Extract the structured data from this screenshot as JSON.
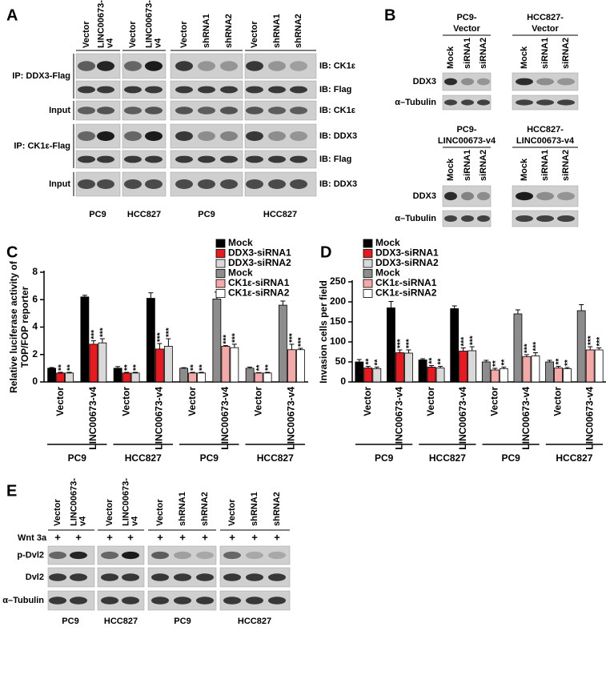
{
  "panel_labels": [
    "A",
    "B",
    "C",
    "D",
    "E"
  ],
  "panel_a": {
    "lanes": [
      [
        "Vector"
      ],
      [
        "LINC00673-",
        "v4"
      ],
      [
        "Vector"
      ],
      [
        "LINC00673-",
        "v4"
      ],
      [
        "Vector"
      ],
      [
        "shRNA1"
      ],
      [
        "shRNA2"
      ],
      [
        "Vector"
      ],
      [
        "shRNA1"
      ],
      [
        "shRNA2"
      ]
    ],
    "ip_labels": [
      "IP: DDX3-Flag",
      "Input",
      "IP: CK1ε-Flag",
      "Input"
    ],
    "ib_labels": [
      "IB: CK1ε",
      "IB: Flag",
      "IB: CK1ε",
      "IB: DDX3",
      "IB: Flag",
      "IB: DDX3"
    ],
    "groups": [
      "PC9",
      "HCC827",
      "PC9",
      "HCC827"
    ]
  },
  "panel_b": {
    "headers": [
      [
        "PC9-",
        "Vector"
      ],
      [
        "HCC827-",
        "Vector"
      ],
      [
        "PC9-",
        "LINC00673-v4"
      ],
      [
        "HCC827-",
        "LINC00673-v4"
      ]
    ],
    "lanes": [
      "Mock",
      "siRNA1",
      "siRNA2"
    ],
    "rows": [
      "DDX3",
      "α–Tubulin"
    ]
  },
  "chart_data": [
    {
      "type": "bar",
      "ylabel": [
        "Relative luciferase activity of",
        "TOP/FOP reporter"
      ],
      "categories": [
        "Vector",
        "LINC00673-v4",
        "Vector",
        "LINC00673-v4",
        "Vector",
        "LINC00673-v4",
        "Vector",
        "LINC00673-v4"
      ],
      "groups": [
        "PC9",
        "HCC827",
        "PC9",
        "HCC827"
      ],
      "ylim": [
        0,
        8
      ],
      "yticks": [
        0,
        2,
        4,
        6,
        8
      ],
      "legend": "upper right",
      "series": [
        {
          "name": "Mock",
          "color": "#000000",
          "values": [
            1.0,
            6.2,
            1.0,
            6.1,
            null,
            null,
            null,
            null
          ],
          "errors": [
            0.05,
            0.12,
            0.12,
            0.4,
            null,
            null,
            null,
            null
          ]
        },
        {
          "name": "DDX3-siRNA1",
          "color": "#e8191f",
          "values": [
            0.65,
            2.75,
            0.65,
            2.4,
            null,
            null,
            null,
            null
          ],
          "errors": [
            0.05,
            0.25,
            0.05,
            0.4,
            null,
            null,
            null,
            null
          ],
          "annotations": [
            "**",
            "***",
            "**",
            "***",
            null,
            null,
            null,
            null
          ]
        },
        {
          "name": "DDX3-siRNA2",
          "color": "#d9d9d9",
          "values": [
            0.65,
            2.85,
            0.65,
            2.6,
            null,
            null,
            null,
            null
          ],
          "errors": [
            0.05,
            0.3,
            0.05,
            0.55,
            null,
            null,
            null,
            null
          ],
          "annotations": [
            "**",
            "***",
            "**",
            "***",
            null,
            null,
            null,
            null
          ]
        },
        {
          "name": "Mock",
          "color": "#8c8c8c",
          "values": [
            null,
            null,
            null,
            null,
            1.0,
            6.05,
            1.0,
            5.6
          ],
          "errors": [
            null,
            null,
            null,
            null,
            0.04,
            0.5,
            0.08,
            0.3
          ]
        },
        {
          "name": "CK1ε-siRNA1",
          "color": "#f4a9a9",
          "values": [
            null,
            null,
            null,
            null,
            0.65,
            2.6,
            0.65,
            2.35
          ],
          "errors": [
            null,
            null,
            null,
            null,
            0.05,
            0.05,
            0.03,
            0.4
          ],
          "annotations": [
            null,
            null,
            null,
            null,
            "**",
            "***",
            "**",
            "***"
          ]
        },
        {
          "name": "CK1ε-siRNA2",
          "color": "#ffffff",
          "values": [
            null,
            null,
            null,
            null,
            0.65,
            2.5,
            0.65,
            2.35
          ],
          "errors": [
            null,
            null,
            null,
            null,
            0.05,
            0.25,
            0.05,
            0.1
          ],
          "annotations": [
            null,
            null,
            null,
            null,
            "**",
            "***",
            "**",
            "***"
          ]
        }
      ]
    },
    {
      "type": "bar",
      "ylabel": [
        "Invasion cells per field"
      ],
      "categories": [
        "Vector",
        "LINC00673-v4",
        "Vector",
        "LINC00673-v4",
        "Vector",
        "LINC00673-v4",
        "Vector",
        "LINC00673-v4"
      ],
      "groups": [
        "PC9",
        "HCC827",
        "PC9",
        "HCC827"
      ],
      "ylim": [
        0,
        250
      ],
      "yticks": [
        0,
        50,
        100,
        150,
        200,
        250
      ],
      "legend": "upper left",
      "series": [
        {
          "name": "Mock",
          "color": "#000000",
          "values": [
            50,
            185,
            55,
            183,
            null,
            null,
            null,
            null
          ],
          "errors": [
            6,
            16,
            3,
            7,
            null,
            null,
            null,
            null
          ]
        },
        {
          "name": "DDX3-siRNA1",
          "color": "#e8191f",
          "values": [
            35,
            73,
            37,
            77,
            null,
            null,
            null,
            null
          ],
          "errors": [
            4,
            7,
            4,
            8,
            null,
            null,
            null,
            null
          ],
          "annotations": [
            "**",
            "***",
            "**",
            "***",
            null,
            null,
            null,
            null
          ]
        },
        {
          "name": "DDX3-siRNA2",
          "color": "#d9d9d9",
          "values": [
            33,
            72,
            35,
            78,
            null,
            null,
            null,
            null
          ],
          "errors": [
            4,
            8,
            4,
            10,
            null,
            null,
            null,
            null
          ],
          "annotations": [
            "**",
            "***",
            "**",
            "***",
            null,
            null,
            null,
            null
          ]
        },
        {
          "name": "Mock",
          "color": "#8c8c8c",
          "values": [
            null,
            null,
            null,
            null,
            50,
            170,
            50,
            178
          ],
          "errors": [
            null,
            null,
            null,
            null,
            4,
            10,
            4,
            15
          ]
        },
        {
          "name": "CK1ε-siRNA1",
          "color": "#f4a9a9",
          "values": [
            null,
            null,
            null,
            null,
            30,
            63,
            35,
            80
          ],
          "errors": [
            null,
            null,
            null,
            null,
            4,
            5,
            4,
            8
          ],
          "annotations": [
            null,
            null,
            null,
            null,
            "**",
            "***",
            "**",
            "***"
          ]
        },
        {
          "name": "CK1ε-siRNA2",
          "color": "#ffffff",
          "values": [
            null,
            null,
            null,
            null,
            33,
            65,
            33,
            80
          ],
          "errors": [
            null,
            null,
            null,
            null,
            4,
            8,
            3,
            5
          ],
          "annotations": [
            null,
            null,
            null,
            null,
            "**",
            "***",
            "**",
            "***"
          ]
        }
      ]
    }
  ],
  "panel_e": {
    "lanes": [
      [
        "Vector"
      ],
      [
        "LINC00673-",
        "v4"
      ],
      [
        "Vector"
      ],
      [
        "LINC00673-",
        "v4"
      ],
      [
        "Vector"
      ],
      [
        "shRNA1"
      ],
      [
        "shRNA2"
      ],
      [
        "Vector"
      ],
      [
        "shRNA1"
      ],
      [
        "shRNA2"
      ]
    ],
    "treatment": "Wnt 3a",
    "sign": "+",
    "rows": [
      "p-Dvl2",
      "Dvl2",
      "α–Tubulin"
    ],
    "groups": [
      "PC9",
      "HCC827",
      "PC9",
      "HCC827"
    ]
  }
}
